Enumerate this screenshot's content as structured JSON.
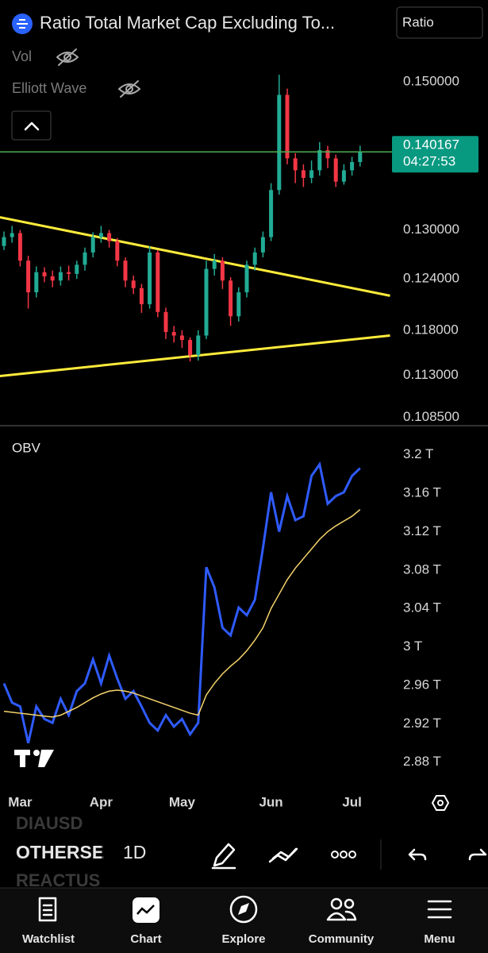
{
  "header": {
    "title": "Ratio Total Market Cap Excluding To...",
    "scale_button": "Ratio"
  },
  "indicators": [
    "Vol",
    "Elliott Wave"
  ],
  "chart_data": [
    {
      "type": "candlestick",
      "log_scale": true,
      "ylim": [
        0.1077,
        0.1623
      ],
      "yticks": [
        {
          "value": 0.15,
          "label": "0.150000"
        },
        {
          "value": 0.13,
          "label": "0.130000"
        },
        {
          "value": 0.124,
          "label": "0.124000"
        },
        {
          "value": 0.118,
          "label": "0.118000"
        },
        {
          "value": 0.113,
          "label": "0.113000"
        },
        {
          "value": 0.1085,
          "label": "0.108500"
        }
      ],
      "up_color": "#22ab94",
      "down_color": "#f23645",
      "open": [
        0.128,
        0.1291,
        0.1296,
        0.1262,
        0.1224,
        0.1248,
        0.1243,
        0.1238,
        0.1248,
        0.1246,
        0.1257,
        0.1272,
        0.1291,
        0.1296,
        0.1286,
        0.1262,
        0.1238,
        0.1229,
        0.121,
        0.1272,
        0.1201,
        0.1178,
        0.1174,
        0.1169,
        0.1152,
        0.1174,
        0.1252,
        0.1262,
        0.1238,
        0.1196,
        0.1224,
        0.1257,
        0.1272,
        0.1291,
        0.1351,
        0.1481,
        0.1393,
        0.1377,
        0.1367,
        0.1377,
        0.1404,
        0.1393,
        0.1362,
        0.1377,
        0.1388
      ],
      "high": [
        0.1298,
        0.1305,
        0.13,
        0.1268,
        0.1255,
        0.1254,
        0.125,
        0.1255,
        0.1256,
        0.1262,
        0.1278,
        0.1297,
        0.1305,
        0.13,
        0.129,
        0.1266,
        0.1244,
        0.1234,
        0.128,
        0.1275,
        0.1206,
        0.1185,
        0.118,
        0.1172,
        0.118,
        0.1262,
        0.127,
        0.1266,
        0.1242,
        0.123,
        0.1262,
        0.1278,
        0.1298,
        0.136,
        0.151,
        0.149,
        0.14,
        0.1385,
        0.139,
        0.1415,
        0.141,
        0.1398,
        0.1385,
        0.1395,
        0.141
      ],
      "low": [
        0.1275,
        0.1284,
        0.1255,
        0.1205,
        0.1218,
        0.1236,
        0.123,
        0.1232,
        0.1238,
        0.124,
        0.125,
        0.1266,
        0.1284,
        0.1278,
        0.1255,
        0.123,
        0.1222,
        0.12,
        0.1205,
        0.1195,
        0.117,
        0.1166,
        0.116,
        0.1145,
        0.1146,
        0.117,
        0.1244,
        0.1228,
        0.1185,
        0.119,
        0.1218,
        0.125,
        0.1266,
        0.1286,
        0.1345,
        0.1385,
        0.136,
        0.1355,
        0.136,
        0.137,
        0.138,
        0.1355,
        0.1358,
        0.137,
        0.1382
      ],
      "close": [
        0.1291,
        0.1296,
        0.1262,
        0.1224,
        0.1248,
        0.1243,
        0.1238,
        0.1248,
        0.1246,
        0.1257,
        0.1272,
        0.1291,
        0.1296,
        0.1286,
        0.1262,
        0.1238,
        0.1229,
        0.121,
        0.1272,
        0.1201,
        0.1178,
        0.1174,
        0.1169,
        0.1152,
        0.1174,
        0.1252,
        0.1262,
        0.1238,
        0.1196,
        0.1224,
        0.1257,
        0.1272,
        0.1291,
        0.1351,
        0.1481,
        0.1393,
        0.1377,
        0.1367,
        0.1377,
        0.1404,
        0.1393,
        0.1362,
        0.1377,
        0.1388,
        0.140167
      ],
      "last_price_color": "#089981",
      "countdown": "04:27:53",
      "trend_lines": [
        {
          "color": "#ffeb3b",
          "x": [
            -0.5,
            47.7
          ],
          "values": [
            0.1316,
            0.122
          ]
        },
        {
          "color": "#ffeb3b",
          "x": [
            -0.5,
            47.7
          ],
          "values": [
            0.1129,
            0.1174
          ]
        }
      ]
    },
    {
      "type": "line",
      "ylim": [
        2.855,
        3.227
      ],
      "yticks": [
        {
          "value": 3.2,
          "label": "3.2 T"
        },
        {
          "value": 3.16,
          "label": "3.16 T"
        },
        {
          "value": 3.12,
          "label": "3.12 T"
        },
        {
          "value": 3.08,
          "label": "3.08 T"
        },
        {
          "value": 3.04,
          "label": "3.04 T"
        },
        {
          "value": 3,
          "label": "3 T"
        },
        {
          "value": 2.96,
          "label": "2.96 T"
        },
        {
          "value": 2.92,
          "label": "2.92 T"
        },
        {
          "value": 2.88,
          "label": "2.88 T"
        }
      ],
      "categories": [
        null,
        null,
        "Mar",
        null,
        null,
        null,
        null,
        null,
        null,
        null,
        null,
        null,
        "Apr",
        null,
        null,
        null,
        null,
        null,
        null,
        null,
        null,
        null,
        "May",
        null,
        null,
        null,
        null,
        null,
        null,
        null,
        null,
        null,
        null,
        "Jun",
        null,
        null,
        null,
        null,
        null,
        null,
        null,
        null,
        null,
        "Jul",
        null
      ],
      "series": [
        {
          "name": "OBV",
          "color": "#2f5bff",
          "values": [
            2.962,
            2.942,
            2.938,
            2.9,
            2.938,
            2.925,
            2.921,
            2.946,
            2.929,
            2.954,
            2.962,
            2.987,
            2.962,
            2.991,
            2.967,
            2.946,
            2.954,
            2.938,
            2.921,
            2.913,
            2.929,
            2.917,
            2.925,
            2.909,
            2.921,
            3.083,
            3.062,
            3.02,
            3.012,
            3.041,
            3.033,
            3.049,
            3.103,
            3.161,
            3.12,
            3.157,
            3.132,
            3.136,
            3.178,
            3.19,
            3.149,
            3.157,
            3.161,
            3.178,
            3.186
          ]
        },
        {
          "color": "#f5d36b",
          "values": [
            2.933,
            2.932,
            2.931,
            2.93,
            2.929,
            2.928,
            2.927,
            2.929,
            2.933,
            2.937,
            2.942,
            2.947,
            2.951,
            2.954,
            2.955,
            2.954,
            2.952,
            2.949,
            2.946,
            2.943,
            2.94,
            2.937,
            2.934,
            2.931,
            2.929,
            2.95,
            2.962,
            2.972,
            2.98,
            2.987,
            2.996,
            3.007,
            3.02,
            3.04,
            3.055,
            3.07,
            3.082,
            3.092,
            3.102,
            3.112,
            3.12,
            3.126,
            3.131,
            3.136,
            3.143
          ]
        }
      ]
    }
  ],
  "toolbar": {
    "symbols": [
      "DIAUSD",
      "OTHERSE",
      "REACTUS"
    ],
    "interval": "1D"
  },
  "nav": [
    "Watchlist",
    "Chart",
    "Explore",
    "Community",
    "Menu"
  ]
}
